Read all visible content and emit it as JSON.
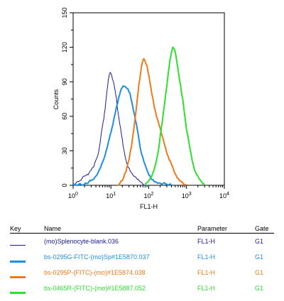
{
  "chart_data": {
    "type": "line",
    "title": "",
    "xlabel": "FL1-H",
    "ylabel": "Counts",
    "xscale": "log",
    "xlim": [
      1,
      10000
    ],
    "ylim": [
      0,
      150
    ],
    "xticks": [
      1,
      10,
      100,
      1000,
      10000
    ],
    "xtick_labels": [
      {
        "base": "10",
        "exp": "0"
      },
      {
        "base": "10",
        "exp": "1"
      },
      {
        "base": "10",
        "exp": "2"
      },
      {
        "base": "10",
        "exp": "3"
      },
      {
        "base": "10",
        "exp": "4"
      }
    ],
    "yticks": [
      0,
      30,
      60,
      90,
      120,
      150
    ],
    "ytick_labels": [
      "0",
      "30",
      "60",
      "90",
      "120",
      "150"
    ],
    "grid": false,
    "series": [
      {
        "name": "(mo)Splenocyte-blank.036",
        "color": "#1a1a99",
        "x": [
          1,
          1.5,
          2,
          2.5,
          3,
          3.5,
          4,
          4.5,
          5,
          5.5,
          6,
          6.5,
          7,
          7.5,
          8,
          8.5,
          9,
          9.5,
          10,
          11,
          12,
          13,
          14,
          15,
          17,
          19,
          21,
          24,
          27,
          30,
          35,
          40,
          50,
          60,
          70,
          80,
          100
        ],
        "y": [
          0,
          4,
          8,
          9,
          13,
          16,
          22,
          26,
          34,
          44,
          52,
          58,
          66,
          76,
          84,
          92,
          96,
          98,
          97,
          92,
          88,
          82,
          76,
          66,
          54,
          44,
          34,
          24,
          18,
          15,
          11,
          8,
          5,
          3,
          1,
          0,
          0
        ]
      },
      {
        "name": "bs-0295G-FITC-(mo)Sp#1E5870.037",
        "color": "#1e8fe0",
        "x": [
          1,
          2,
          3,
          4,
          5,
          6,
          7,
          8,
          9,
          10,
          12,
          14,
          16,
          18,
          20,
          22,
          25,
          28,
          32,
          36,
          40,
          45,
          50,
          55,
          60,
          70,
          80,
          90,
          100,
          120,
          150,
          200,
          300,
          400
        ],
        "y": [
          0,
          1,
          4,
          8,
          14,
          20,
          26,
          33,
          40,
          46,
          58,
          68,
          76,
          82,
          85,
          86,
          85,
          84,
          80,
          72,
          64,
          56,
          48,
          40,
          32,
          24,
          18,
          13,
          9,
          5,
          3,
          2,
          1,
          0
        ]
      },
      {
        "name": "bs-0295P-(FITC)-(mo)#1E5874.038",
        "color": "#f07a1a",
        "x": [
          15,
          20,
          25,
          30,
          35,
          40,
          45,
          50,
          55,
          60,
          65,
          70,
          75,
          80,
          90,
          100,
          110,
          120,
          140,
          160,
          180,
          200,
          250,
          300,
          350,
          400,
          500,
          600,
          800,
          1000
        ],
        "y": [
          0,
          4,
          12,
          22,
          34,
          48,
          62,
          76,
          88,
          96,
          104,
          108,
          110,
          108,
          104,
          96,
          88,
          80,
          68,
          60,
          55,
          50,
          38,
          28,
          22,
          18,
          10,
          6,
          2,
          0
        ]
      },
      {
        "name": "bs-0465R-(FITC)-(mo)#1E5887.052",
        "color": "#2ee02e",
        "x": [
          80,
          100,
          120,
          150,
          180,
          200,
          230,
          260,
          300,
          330,
          360,
          400,
          430,
          460,
          500,
          550,
          600,
          700,
          800,
          900,
          1000,
          1200,
          1400,
          1600,
          2000,
          2500,
          3000
        ],
        "y": [
          0,
          4,
          8,
          18,
          30,
          42,
          56,
          70,
          86,
          98,
          108,
          116,
          120,
          119,
          116,
          108,
          100,
          86,
          74,
          60,
          48,
          34,
          22,
          14,
          8,
          3,
          0
        ]
      }
    ]
  },
  "legend": {
    "headers": {
      "key": "Key",
      "name": "Name",
      "parameter": "Parameter",
      "gate": "Gate"
    },
    "rows": [
      {
        "name": "(mo)Splenocyte-blank.036",
        "parameter": "FL1-H",
        "gate": "G1",
        "color": "#1a1a99",
        "line_weight": "thin"
      },
      {
        "name": "bs-0295G-FITC-(mo)Sp#1E5870.037",
        "parameter": "FL1-H",
        "gate": "G1",
        "color": "#1e8fe0",
        "line_weight": "thick"
      },
      {
        "name": "bs-0295P-(FITC)-(mo)#1E5874.038",
        "parameter": "FL1-H",
        "gate": "G1",
        "color": "#f07a1a",
        "line_weight": "thick"
      },
      {
        "name": "bs-0465R-(FITC)-(mo)#1E5887.052",
        "parameter": "FL1-H",
        "gate": "G1",
        "color": "#2ee02e",
        "line_weight": "thick"
      }
    ]
  }
}
